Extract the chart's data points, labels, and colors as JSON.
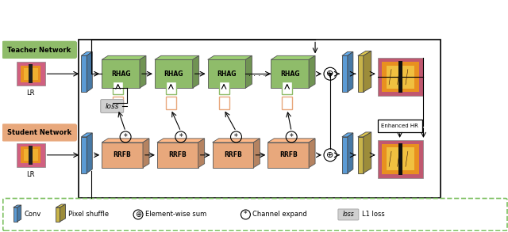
{
  "fig_width": 6.4,
  "fig_height": 2.93,
  "bg_color": "#ffffff",
  "teacher_label": "Teacher Network",
  "student_label": "Student Network",
  "teacher_box_color": "#8FBC6A",
  "teacher_box_dark": "#6A9A4E",
  "teacher_box_top": "#A0CC7A",
  "student_box_color": "#E8A87C",
  "student_box_dark": "#C87A50",
  "student_box_top": "#F0C098",
  "conv_color": "#5B9BD5",
  "conv_dark": "#3A6FA0",
  "conv_top": "#7ABDE8",
  "pixel_color": "#C8B44A",
  "pixel_dark": "#9A8830",
  "pixel_top": "#E0CC6A",
  "rhag_label": "RHAG",
  "rrfb_label": "RRFB",
  "loss_box_color": "#D0D0D0",
  "enhanced_hr_label": "Enhanced HR",
  "lr_label": "LR",
  "dashed_border_color": "#7ABF5E",
  "green_outline": "#8FBC6A",
  "orange_outline": "#E8A87C",
  "img_bg_colors": [
    "#E8922A",
    "#C87820",
    "#D4481A",
    "#E86010"
  ],
  "img_bg_colors2": [
    "#D4881A",
    "#B86010",
    "#E87820",
    "#C45010"
  ]
}
